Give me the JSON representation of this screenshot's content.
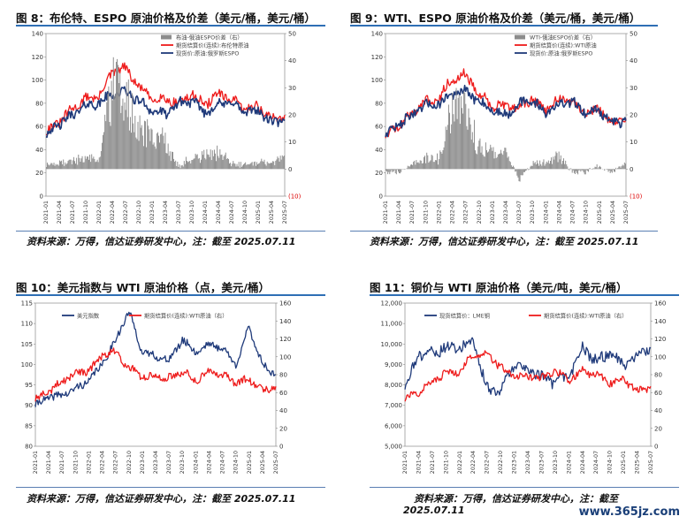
{
  "panels": [
    {
      "id": "fig8",
      "title": "图 8：布伦特、ESPO 原油价格及价差（美元/桶，美元/桶）",
      "source": "资料来源：万得，信达证券研发中心，注：截至 2025.07.11",
      "legend": [
        "布油-俄油ESPO价差（右）",
        "期货结算价(连续):布伦特原油",
        "现货价:原油:俄罗斯ESPO"
      ]
    },
    {
      "id": "fig9",
      "title": "图 9：WTI、ESPO 原油价格及价差（美元/桶，美元/桶）",
      "source": "资料来源：万得，信达证券研发中心，注：截至 2025.07.11",
      "legend": [
        "WTI-俄油ESPO价差（右）",
        "期货结算价(连续):WTI原油",
        "现货价:原油:俄罗斯ESPO"
      ]
    },
    {
      "id": "fig10",
      "title": "图 10：美元指数与 WTI 原油价格（点，美元/桶）",
      "source": "资料来源：万得，信达证券研发中心，注：截至 2025.07.11",
      "legend": [
        "美元指数",
        "期货结算价(连续):WTI原油（右）"
      ]
    },
    {
      "id": "fig11",
      "title": "图 11：铜价与 WTI 原油价格（美元/吨，美元/桶）",
      "source_line1": "资料来源：万得，信达证券研发中心，注：截至",
      "source_line2": "2025.07.11",
      "legend": [
        "现货结算价：LME铜",
        "期货结算价(连续):WTI原油（右）"
      ]
    }
  ],
  "watermark": "www.365jz.com",
  "colors": {
    "red": "#ee1c1c",
    "navy": "#1f3a7a",
    "gray": "#8c8c8c",
    "rule": "#2e6fb5"
  },
  "chart_data": [
    {
      "type": "line",
      "x": [
        "2021-01",
        "2021-04",
        "2021-07",
        "2021-10",
        "2022-01",
        "2022-04",
        "2022-07",
        "2022-10",
        "2023-01",
        "2023-04",
        "2023-07",
        "2023-10",
        "2024-01",
        "2024-04",
        "2024-07",
        "2024-10",
        "2025-01",
        "2025-04",
        "2025-07"
      ],
      "left_ticks": [
        0,
        20,
        40,
        60,
        80,
        100,
        120,
        140
      ],
      "ylim_left": [
        0,
        140
      ],
      "right_ticks": [
        "(10)",
        "0",
        "10",
        "20",
        "30",
        "40",
        "50"
      ],
      "ylim_right": [
        -10,
        50
      ],
      "series": [
        {
          "name": "期货结算价(连续):布伦特原油",
          "axis": "left",
          "values": [
            55,
            64,
            75,
            84,
            86,
            107,
            110,
            94,
            84,
            84,
            80,
            88,
            79,
            88,
            83,
            75,
            78,
            66,
            70
          ]
        },
        {
          "name": "现货价:原油:俄罗斯ESPO",
          "axis": "left",
          "values": [
            53,
            62,
            70,
            78,
            80,
            88,
            90,
            82,
            74,
            70,
            80,
            82,
            72,
            79,
            81,
            72,
            74,
            63,
            65
          ]
        },
        {
          "name": "布油-俄油ESPO价差（右）",
          "axis": "right",
          "type": "bar",
          "values": [
            2,
            2,
            3,
            4,
            4,
            30,
            26,
            14,
            12,
            10,
            1,
            4,
            5,
            6,
            2,
            2,
            3,
            2,
            5
          ]
        }
      ]
    },
    {
      "type": "line",
      "x": [
        "2021-01",
        "2021-04",
        "2021-07",
        "2021-10",
        "2022-01",
        "2022-04",
        "2022-07",
        "2022-10",
        "2023-01",
        "2023-04",
        "2023-07",
        "2023-10",
        "2024-01",
        "2024-04",
        "2024-07",
        "2024-10",
        "2025-01",
        "2025-04",
        "2025-07"
      ],
      "left_ticks": [
        0,
        20,
        40,
        60,
        80,
        100,
        120,
        140
      ],
      "ylim_left": [
        0,
        140
      ],
      "right_ticks": [
        "(10)",
        "0",
        "10",
        "20",
        "30",
        "40",
        "50"
      ],
      "ylim_right": [
        -10,
        50
      ],
      "series": [
        {
          "name": "期货结算价(连续):WTI原油",
          "axis": "left",
          "values": [
            52,
            61,
            72,
            82,
            84,
            102,
            105,
            88,
            78,
            78,
            76,
            84,
            74,
            84,
            80,
            71,
            75,
            62,
            67
          ]
        },
        {
          "name": "现货价:原油:俄罗斯ESPO",
          "axis": "left",
          "values": [
            53,
            62,
            70,
            78,
            80,
            88,
            90,
            82,
            74,
            70,
            80,
            82,
            72,
            79,
            81,
            72,
            74,
            63,
            65
          ]
        },
        {
          "name": "WTI-俄油ESPO价差（右）",
          "axis": "right",
          "type": "bar",
          "values": [
            -1,
            -1,
            2,
            4,
            4,
            22,
            20,
            8,
            6,
            7,
            -4,
            2,
            2,
            5,
            -1,
            -1,
            1,
            -1,
            2
          ]
        }
      ]
    },
    {
      "type": "line",
      "x": [
        "2021-01",
        "2021-04",
        "2021-07",
        "2021-10",
        "2022-01",
        "2022-04",
        "2022-07",
        "2022-10",
        "2023-01",
        "2023-04",
        "2023-07",
        "2023-10",
        "2024-01",
        "2024-04",
        "2024-07",
        "2024-10",
        "2025-01",
        "2025-04",
        "2025-07"
      ],
      "left_ticks": [
        80,
        85,
        90,
        95,
        100,
        105,
        110,
        115
      ],
      "ylim_left": [
        80,
        115
      ],
      "right_ticks": [
        0,
        20,
        40,
        60,
        80,
        100,
        120,
        140,
        160
      ],
      "ylim_right": [
        0,
        160
      ],
      "series": [
        {
          "name": "美元指数",
          "axis": "left",
          "values": [
            90,
            92,
            92.5,
            94,
            96,
            100,
            106,
            113,
            103,
            102,
            101,
            106,
            103,
            105,
            104,
            100,
            109,
            100,
            97.5
          ]
        },
        {
          "name": "期货结算价(连续):WTI原油（右）",
          "axis": "right",
          "values": [
            52,
            61,
            72,
            82,
            84,
            102,
            105,
            88,
            78,
            78,
            76,
            84,
            74,
            84,
            80,
            71,
            75,
            62,
            67
          ]
        }
      ]
    },
    {
      "type": "line",
      "x": [
        "2021-01",
        "2021-04",
        "2021-07",
        "2021-10",
        "2022-01",
        "2022-04",
        "2022-07",
        "2022-10",
        "2023-01",
        "2023-04",
        "2023-07",
        "2023-10",
        "2024-01",
        "2024-04",
        "2024-07",
        "2024-10",
        "2025-01",
        "2025-04",
        "2025-07"
      ],
      "left_ticks": [
        "5,000",
        "6,000",
        "7,000",
        "8,000",
        "9,000",
        "10,000",
        "11,000",
        "12,000"
      ],
      "ylim_left": [
        5000,
        12000
      ],
      "right_ticks": [
        0,
        20,
        40,
        60,
        80,
        100,
        120,
        140,
        160
      ],
      "ylim_right": [
        0,
        160
      ],
      "series": [
        {
          "name": "现货结算价：LME铜",
          "axis": "left",
          "values": [
            7900,
            9500,
            9600,
            9800,
            9800,
            10100,
            7800,
            7700,
            9000,
            8800,
            8400,
            8100,
            8400,
            9800,
            9200,
            9500,
            9000,
            9400,
            9800
          ]
        },
        {
          "name": "期货结算价(连续):WTI原油（右）",
          "axis": "right",
          "values": [
            52,
            61,
            72,
            82,
            84,
            102,
            105,
            88,
            78,
            78,
            76,
            84,
            74,
            84,
            80,
            71,
            75,
            62,
            67
          ]
        }
      ]
    }
  ]
}
